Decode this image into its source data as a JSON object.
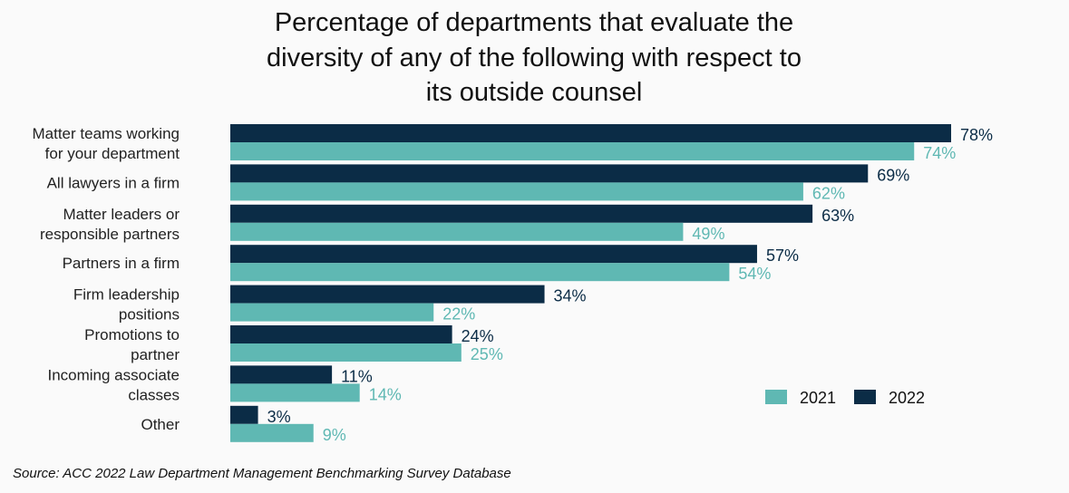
{
  "chart_data": {
    "type": "bar",
    "orientation": "horizontal",
    "title": [
      "Percentage of departments that evaluate the",
      "diversity of any of the following with respect to",
      "its outside counsel"
    ],
    "categories": [
      [
        "Matter teams working",
        "for your department"
      ],
      [
        "All lawyers in a firm"
      ],
      [
        "Matter leaders or",
        "responsible partners"
      ],
      [
        "Partners in a firm"
      ],
      [
        "Firm leadership",
        "positions"
      ],
      [
        "Promotions to",
        "partner"
      ],
      [
        "Incoming associate",
        "classes"
      ],
      [
        "Other"
      ]
    ],
    "series": [
      {
        "name": "2022",
        "color": "#0b2c46",
        "values": [
          78,
          69,
          63,
          57,
          34,
          24,
          11,
          3
        ],
        "labels": [
          "78%",
          "69%",
          "63%",
          "57%",
          "34%",
          "24%",
          "11%",
          "3%"
        ]
      },
      {
        "name": "2021",
        "color": "#5fb8b3",
        "values": [
          74,
          62,
          49,
          54,
          22,
          25,
          14,
          9
        ],
        "labels": [
          "74%",
          "62%",
          "49%",
          "54%",
          "22%",
          "25%",
          "14%",
          "9%"
        ]
      }
    ],
    "legend": {
      "position": "bottom-right",
      "order": [
        "2021",
        "2022"
      ]
    },
    "grid": false,
    "xlim": [
      0,
      78
    ],
    "source": "Source: ACC 2022 Law Department Management Benchmarking Survey Database"
  }
}
